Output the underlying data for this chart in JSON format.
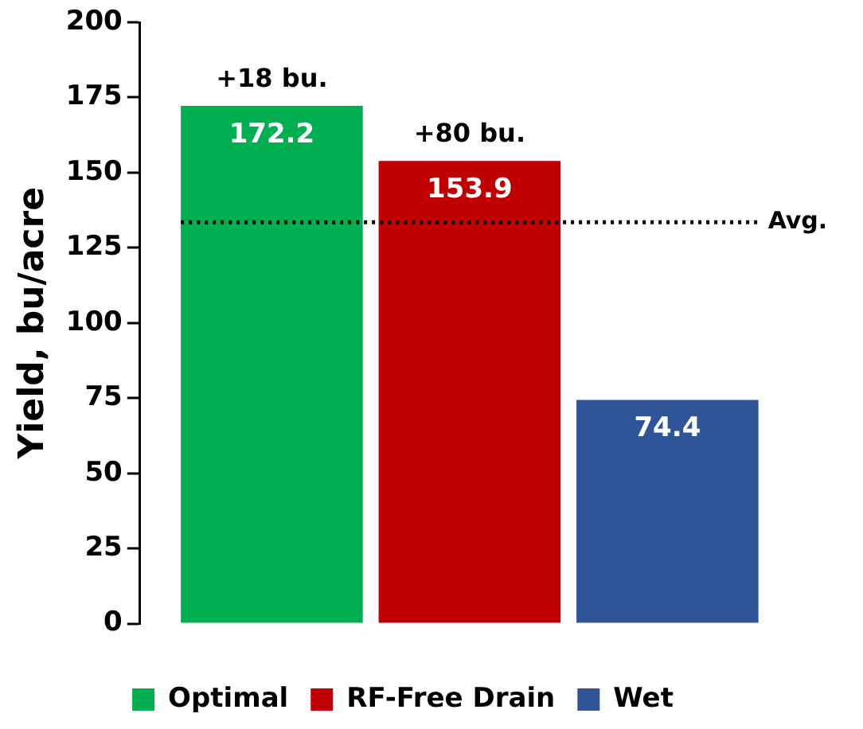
{
  "chart_data": {
    "type": "bar",
    "ylabel": "Yield, bu/acre",
    "categories": [
      null
    ],
    "series": [
      {
        "name": "Optimal",
        "color": "#00b050",
        "values": [
          172.2
        ]
      },
      {
        "name": "RF-Free Drain",
        "color": "#c00000",
        "values": [
          153.9
        ]
      },
      {
        "name": "Wet",
        "color": "#2f5597",
        "values": [
          74.4
        ]
      }
    ],
    "ylim": [
      0,
      200
    ],
    "yticks": [
      0,
      25,
      50,
      75,
      100,
      125,
      150,
      175,
      200
    ],
    "grid": false,
    "legend": "bottom",
    "data_labels": true,
    "ref_lines": [
      {
        "axis": "y",
        "value": 133.5,
        "label": "Avg.",
        "color": "#000000",
        "line_style": "dotted"
      }
    ],
    "annotations": [
      {
        "text": "+18 bu.",
        "y": 172.2
      },
      {
        "text": "+80 bu.",
        "y": 153.9
      }
    ]
  }
}
